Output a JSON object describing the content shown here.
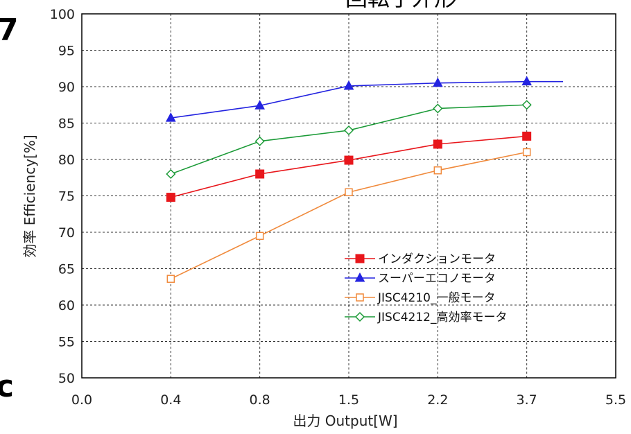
{
  "chart_data": {
    "type": "line",
    "title": "回転子外形",
    "xlabel": "出力 Output[W]",
    "ylabel": "効率 Efficiency[%]",
    "categories": [
      "0.0",
      "0.4",
      "0.8",
      "1.5",
      "2.2",
      "3.7",
      "5.5"
    ],
    "ylim": [
      50,
      100
    ],
    "yticks": [
      50,
      55,
      60,
      65,
      70,
      75,
      80,
      85,
      90,
      95,
      100
    ],
    "grid": true,
    "legend_position": "lower-right",
    "series": [
      {
        "name": "インダクションモータ",
        "color": "#e8161b",
        "marker": "filled-square",
        "points": [
          {
            "x": "0.4",
            "y": 74.8
          },
          {
            "x": "0.8",
            "y": 78.0
          },
          {
            "x": "1.5",
            "y": 79.9
          },
          {
            "x": "2.2",
            "y": 82.1
          },
          {
            "x": "3.7",
            "y": 83.2
          }
        ]
      },
      {
        "name": "スーパーエコノモータ",
        "color": "#2323e0",
        "marker": "filled-triangle",
        "points": [
          {
            "x": "0.4",
            "y": 85.7
          },
          {
            "x": "0.8",
            "y": 87.4
          },
          {
            "x": "1.5",
            "y": 90.1
          },
          {
            "x": "2.2",
            "y": 90.5
          },
          {
            "x": "3.7",
            "y": 90.7
          }
        ]
      },
      {
        "name": "JISC4210_一般モータ",
        "color": "#f08a3c",
        "marker": "open-square",
        "points": [
          {
            "x": "0.4",
            "y": 63.6
          },
          {
            "x": "0.8",
            "y": 69.5
          },
          {
            "x": "1.5",
            "y": 75.5
          },
          {
            "x": "2.2",
            "y": 78.5
          },
          {
            "x": "3.7",
            "y": 81.0
          }
        ]
      },
      {
        "name": "JISC4212_高効率モータ",
        "color": "#1a9a36",
        "marker": "open-diamond",
        "points": [
          {
            "x": "0.4",
            "y": 78.0
          },
          {
            "x": "0.8",
            "y": 82.5
          },
          {
            "x": "1.5",
            "y": 84.0
          },
          {
            "x": "2.2",
            "y": 87.0
          },
          {
            "x": "3.7",
            "y": 87.5
          }
        ]
      }
    ],
    "edge_glyphs": {
      "top_left": "7",
      "bottom_left": "c"
    }
  }
}
